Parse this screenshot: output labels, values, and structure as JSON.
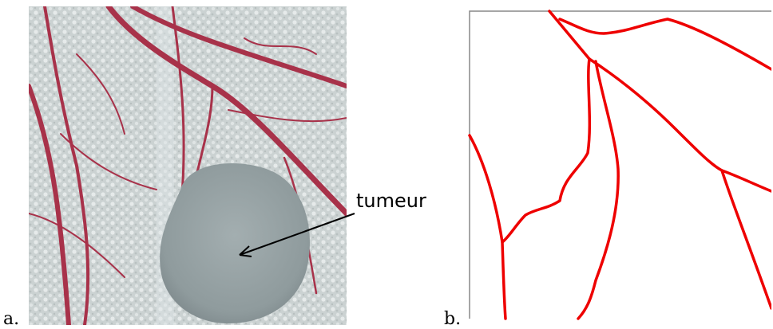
{
  "figure": {
    "panel_a_label": "a.",
    "panel_b_label": "b.",
    "annotation": "tumeur",
    "colors": {
      "vessel_trace": "#ee0000",
      "photo_vessel": "#a8324a",
      "photo_background": "#c9d0d0",
      "tumor": "#9aa6a8"
    }
  }
}
